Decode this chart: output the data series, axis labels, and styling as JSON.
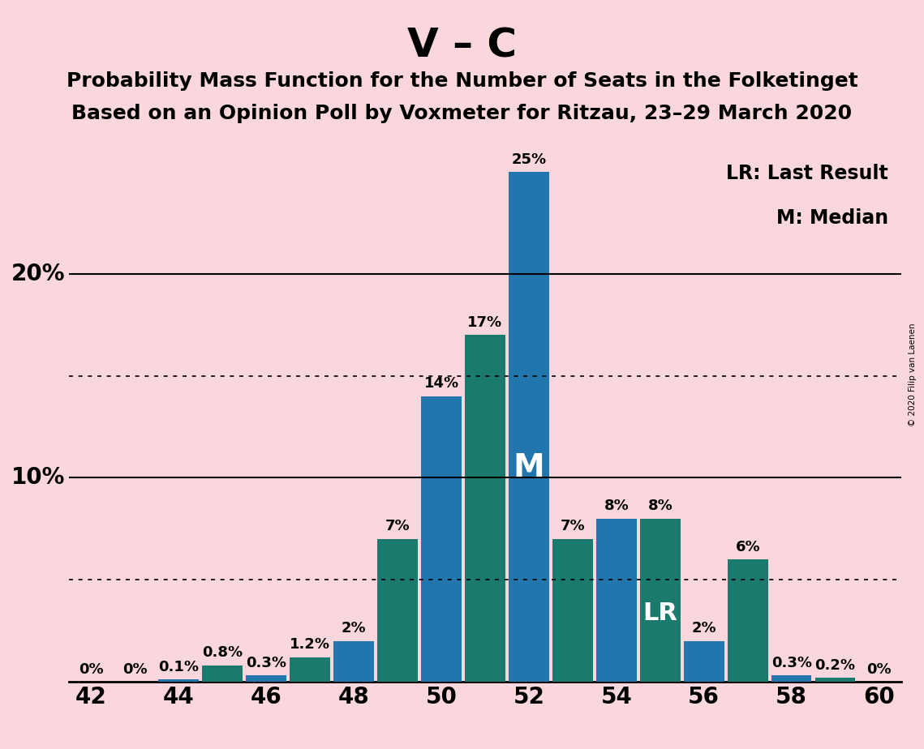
{
  "title_main": "V – C",
  "subtitle1": "Probability Mass Function for the Number of Seats in the Folketinget",
  "subtitle2": "Based on an Opinion Poll by Voxmeter for Ritzau, 23–29 March 2020",
  "copyright": "© 2020 Filip van Laenen",
  "legend_lr": "LR: Last Result",
  "legend_m": "M: Median",
  "seats": [
    42,
    43,
    44,
    45,
    46,
    47,
    48,
    49,
    50,
    51,
    52,
    53,
    54,
    55,
    56,
    57,
    58,
    59,
    60
  ],
  "values": [
    0.0,
    0.0,
    0.1,
    0.8,
    0.3,
    1.2,
    2.0,
    7.0,
    14.0,
    17.0,
    25.0,
    7.0,
    8.0,
    8.0,
    2.0,
    6.0,
    0.3,
    0.2,
    0.0
  ],
  "labels": [
    "0%",
    "0%",
    "0.1%",
    "0.8%",
    "0.3%",
    "1.2%",
    "2%",
    "7%",
    "14%",
    "17%",
    "25%",
    "7%",
    "8%",
    "8%",
    "2%",
    "6%",
    "0.3%",
    "0.2%",
    "0%"
  ],
  "colors": [
    "#2176AE",
    "#1a7a6e",
    "#2176AE",
    "#1a7a6e",
    "#2176AE",
    "#1a7a6e",
    "#2176AE",
    "#1a7a6e",
    "#2176AE",
    "#1a7a6e",
    "#2176AE",
    "#1a7a6e",
    "#2176AE",
    "#1a7a6e",
    "#2176AE",
    "#1a7a6e",
    "#2176AE",
    "#1a7a6e",
    "#2176AE"
  ],
  "median_seat": 52,
  "lr_seat": 55,
  "median_label": "M",
  "lr_label": "LR",
  "background_color": "#f9d7dc",
  "ylim": [
    0,
    27
  ],
  "xlim": [
    41.5,
    60.5
  ],
  "xticks": [
    42,
    44,
    46,
    48,
    50,
    52,
    54,
    56,
    58,
    60
  ],
  "hlines_solid": [
    10,
    20
  ],
  "hlines_dotted": [
    5,
    15
  ],
  "bar_width": 0.92,
  "title_fontsize": 36,
  "subtitle_fontsize": 18,
  "label_fontsize": 13,
  "tick_fontsize": 20,
  "annotation_m_fontsize": 28,
  "annotation_lr_fontsize": 22,
  "ylabel_10": "10%",
  "ylabel_20": "20%"
}
